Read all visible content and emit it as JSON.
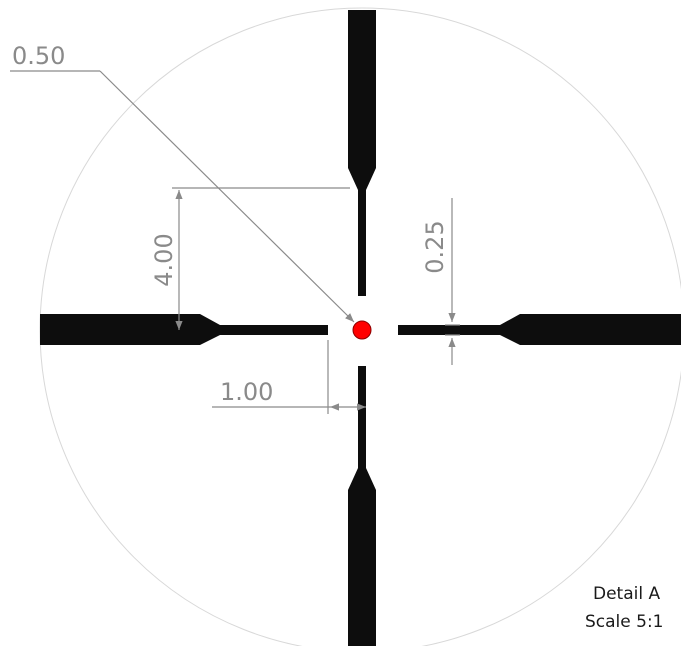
{
  "dimensions": {
    "dot_diameter": "0.50",
    "post_spacing": "4.00",
    "line_thickness": "0.25",
    "center_gap": "1.00"
  },
  "caption": {
    "detail": "Detail A",
    "scale": "Scale 5:1"
  },
  "colors": {
    "reticle": "#0d0d0d",
    "center_dot": "#ff0000",
    "dimension_line": "#8a8a8a",
    "field_circle": "#d8d8d8"
  }
}
